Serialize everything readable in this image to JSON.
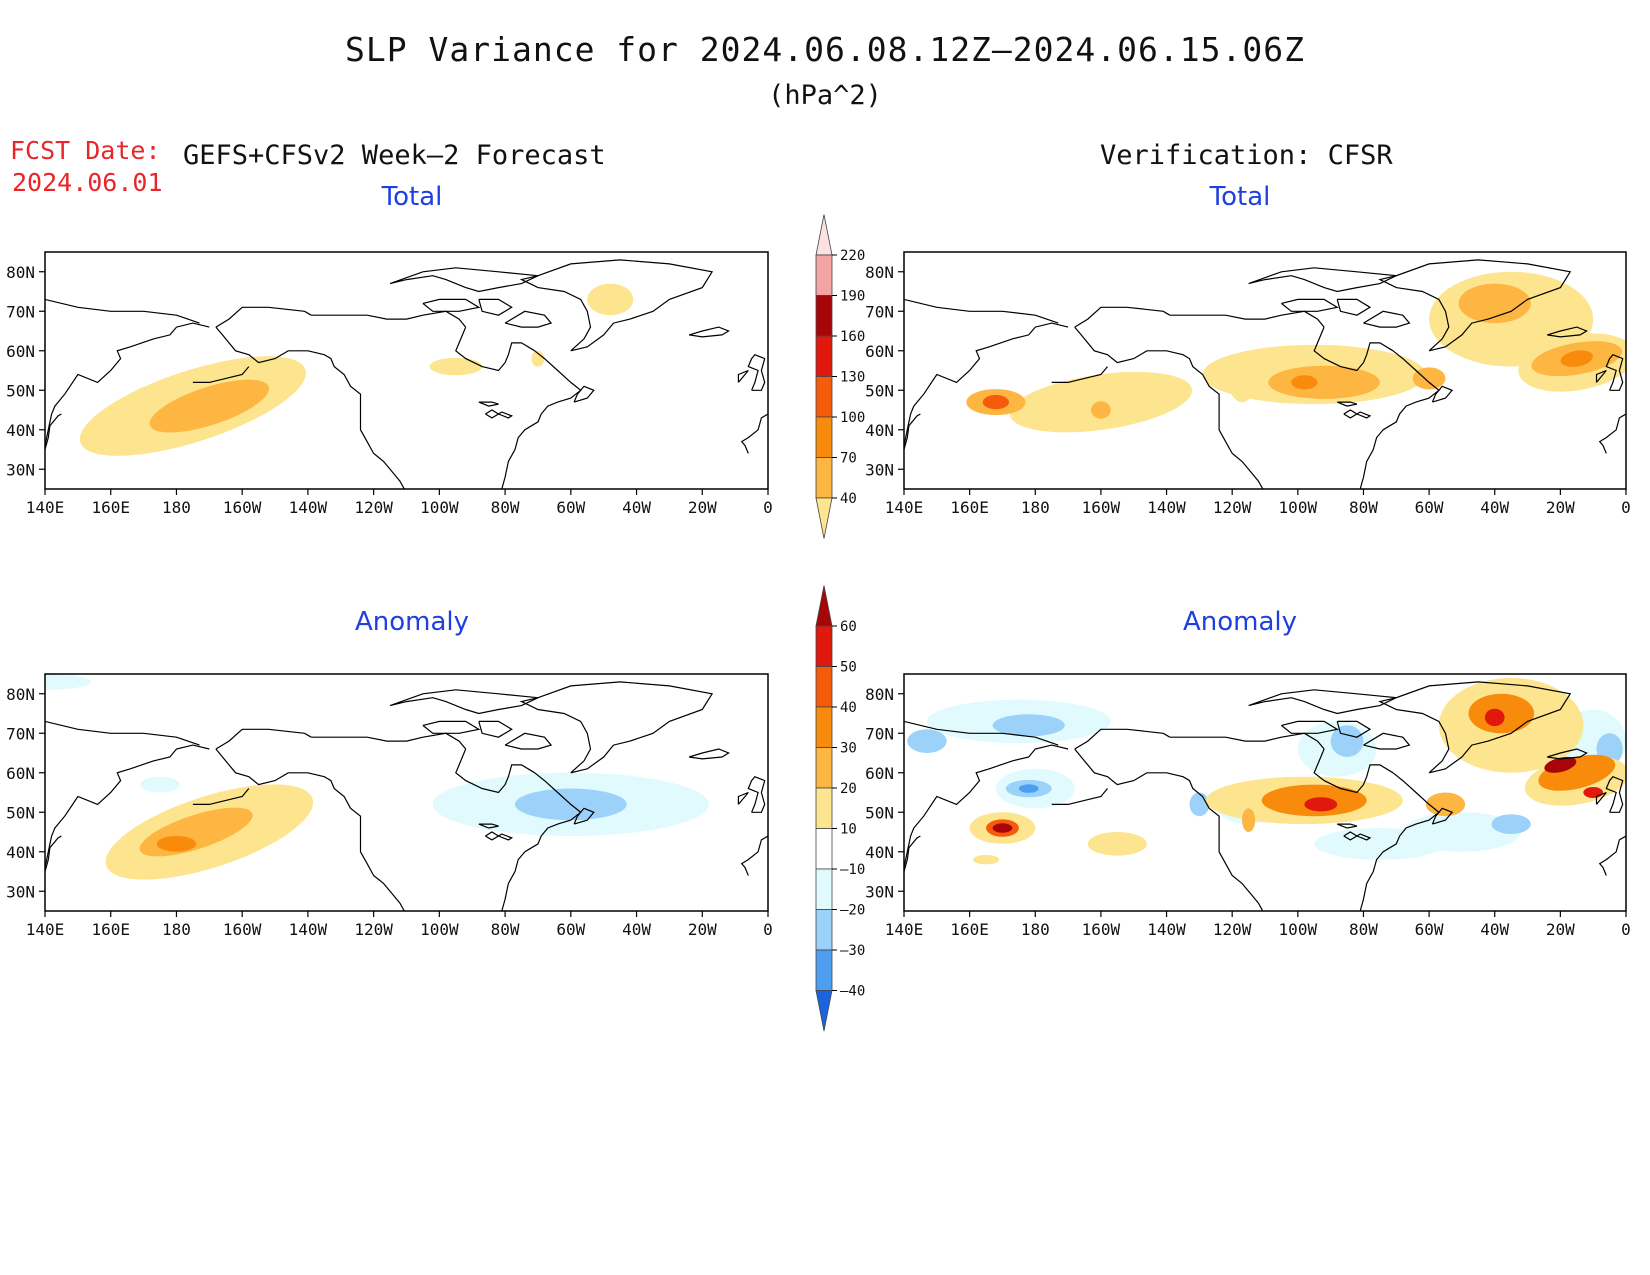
{
  "title": "SLP Variance for 2024.06.08.12Z–2024.06.15.06Z",
  "units": "(hPa^2)",
  "fcst_label": "FCST Date:",
  "fcst_date": "2024.06.01",
  "left_header": "GEFS+CFSv2 Week–2 Forecast",
  "right_header": "Verification: CFSR",
  "panels": {
    "fc_total": {
      "title": "Total"
    },
    "ver_total": {
      "title": "Total"
    },
    "fc_anom": {
      "title": "Anomaly"
    },
    "ver_anom": {
      "title": "Anomaly"
    }
  },
  "map_axes": {
    "lat_labels": [
      "80N",
      "70N",
      "60N",
      "50N",
      "40N",
      "30N"
    ],
    "lon_labels": [
      "140E",
      "160E",
      "180",
      "160W",
      "140W",
      "120W",
      "100W",
      "80W",
      "60W",
      "40W",
      "20W",
      "0"
    ]
  },
  "colorbar_total": {
    "levels": [
      "40",
      "70",
      "100",
      "130",
      "160",
      "190",
      "220"
    ],
    "colors": [
      "#fde48f",
      "#fdb642",
      "#f98b0c",
      "#f65a0b",
      "#e1180e",
      "#a8050a",
      "#f4a4a4",
      "#fde0e0"
    ]
  },
  "colorbar_anomaly": {
    "levels": [
      "60",
      "50",
      "40",
      "30",
      "20",
      "10",
      "–10",
      "–20",
      "–30",
      "–40"
    ],
    "colors": [
      "#a8050a",
      "#e1180e",
      "#f65a0b",
      "#f98b0c",
      "#fdb642",
      "#fde48f",
      "#ffffff",
      "#e0fafe",
      "#9cd2fa",
      "#4d9ef0",
      "#1a64e0"
    ]
  },
  "chart_data": {
    "type": "heatmap",
    "variable": "SLP Variance",
    "units": "hPa^2",
    "period": "2024.06.08.12Z-2024.06.15.06Z",
    "panels": [
      {
        "name": "GEFS+CFSv2 Week-2 Forecast Total",
        "max_features": [
          {
            "region": "North Pacific 170E-140W, 40N-55N",
            "value_range": [
              70,
              100
            ]
          },
          {
            "region": "Greenland 40W, 72N",
            "value_range": [
              40,
              70
            ]
          }
        ]
      },
      {
        "name": "Verification CFSR Total",
        "max_features": [
          {
            "region": "NW Pacific 170E, 47N",
            "value_range": [
              130,
              160
            ]
          },
          {
            "region": "Central Canada/US 100W-80W, 52N",
            "value_range": [
              100,
              130
            ]
          },
          {
            "region": "Greenland/N Atlantic 20W-40W, 60N-75N",
            "value_range": [
              100,
              130
            ]
          }
        ]
      },
      {
        "name": "GEFS+CFSv2 Week-2 Forecast Anomaly",
        "max_features": [
          {
            "region": "North Pacific 170W, 45N",
            "value_range": [
              30,
              40
            ]
          },
          {
            "region": "NW Atlantic 50W, 50N",
            "value_range": [
              -30,
              -20
            ]
          }
        ]
      },
      {
        "name": "Verification CFSR Anomaly",
        "max_features": [
          {
            "region": "NW Pacific 170E, 47N",
            "value_range": [
              50,
              60
            ]
          },
          {
            "region": "North Atlantic 30W, 63N",
            "value_range": [
              50,
              60
            ]
          },
          {
            "region": "Greenland 50W, 75N",
            "value_range": [
              50,
              60
            ]
          },
          {
            "region": "NE Pacific 170E, 55N",
            "value_range": [
              -30,
              -20
            ]
          }
        ]
      }
    ]
  }
}
